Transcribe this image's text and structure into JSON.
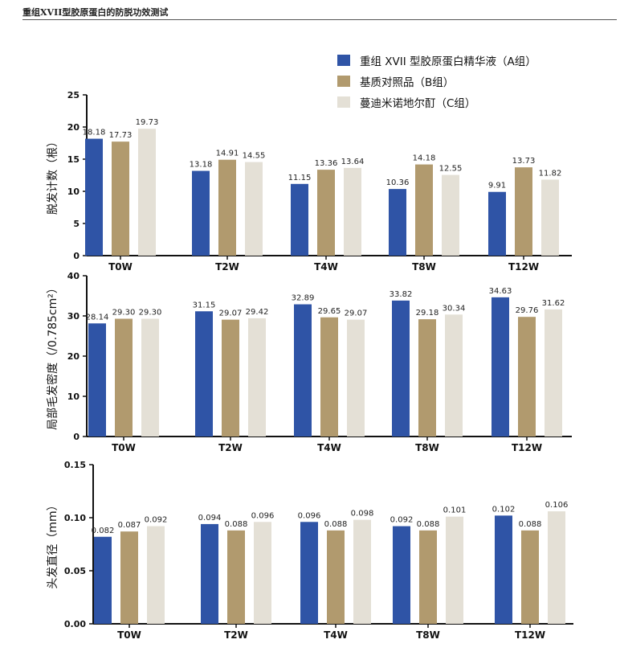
{
  "header": {
    "title": "重组XVII型胶原蛋白的防脱功效测试"
  },
  "colors": {
    "A": "#2f54a6",
    "B": "#b19a6e",
    "C": "#e4e0d6",
    "axis": "#111111"
  },
  "legend": [
    {
      "key": "A",
      "label": "重组 XVII 型胶原蛋白精华液（A组）"
    },
    {
      "key": "B",
      "label": "基质对照品（B组）"
    },
    {
      "key": "C",
      "label": "蔓迪米诺地尔酊（C组）"
    }
  ],
  "chart_data": [
    {
      "type": "bar",
      "categories": [
        "T0W",
        "T2W",
        "T4W",
        "T8W",
        "T12W"
      ],
      "ylabel": "脱发计数（根）",
      "ylim": [
        0,
        25
      ],
      "yticks": [
        0,
        5,
        10,
        15,
        20,
        25
      ],
      "tick_labels": [
        "0",
        "5",
        "10",
        "15",
        "20",
        "25"
      ],
      "series": [
        {
          "key": "A",
          "values": [
            18.18,
            13.18,
            11.15,
            10.36,
            9.91
          ],
          "labels": [
            "18.18",
            "13.18",
            "11.15",
            "10.36",
            "9.91"
          ]
        },
        {
          "key": "B",
          "values": [
            17.73,
            14.91,
            13.36,
            14.18,
            13.73
          ],
          "labels": [
            "17.73",
            "14.91",
            "13.36",
            "14.18",
            "13.73"
          ]
        },
        {
          "key": "C",
          "values": [
            19.73,
            14.55,
            13.64,
            12.55,
            11.82
          ],
          "labels": [
            "19.73",
            "14.55",
            "13.64",
            "12.55",
            "11.82"
          ]
        }
      ]
    },
    {
      "type": "bar",
      "categories": [
        "T0W",
        "T2W",
        "T4W",
        "T8W",
        "T12W"
      ],
      "ylabel": "局部毛发密度（/0.785cm²）",
      "ylim": [
        0,
        40
      ],
      "yticks": [
        0,
        10,
        20,
        30,
        40
      ],
      "tick_labels": [
        "0",
        "10",
        "20",
        "30",
        "40"
      ],
      "series": [
        {
          "key": "A",
          "values": [
            28.14,
            31.15,
            32.89,
            33.82,
            34.63
          ],
          "labels": [
            "28.14",
            "31.15",
            "32.89",
            "33.82",
            "34.63"
          ]
        },
        {
          "key": "B",
          "values": [
            29.3,
            29.07,
            29.65,
            29.18,
            29.76
          ],
          "labels": [
            "29.30",
            "29.07",
            "29.65",
            "29.18",
            "29.76"
          ]
        },
        {
          "key": "C",
          "values": [
            29.3,
            29.42,
            29.07,
            30.34,
            31.62
          ],
          "labels": [
            "29.30",
            "29.42",
            "29.07",
            "30.34",
            "31.62"
          ]
        }
      ]
    },
    {
      "type": "bar",
      "categories": [
        "T0W",
        "T2W",
        "T4W",
        "T8W",
        "T12W"
      ],
      "ylabel": "头发直径（mm）",
      "ylim": [
        0,
        0.15
      ],
      "yticks": [
        0,
        0.05,
        0.1,
        0.15
      ],
      "tick_labels": [
        "0.00",
        "0.05",
        "0.10",
        "0.15"
      ],
      "series": [
        {
          "key": "A",
          "values": [
            0.082,
            0.094,
            0.096,
            0.092,
            0.102
          ],
          "labels": [
            "0.082",
            "0.094",
            "0.096",
            "0.092",
            "0.102"
          ]
        },
        {
          "key": "B",
          "values": [
            0.087,
            0.088,
            0.088,
            0.088,
            0.088
          ],
          "labels": [
            "0.087",
            "0.088",
            "0.088",
            "0.088",
            "0.088"
          ]
        },
        {
          "key": "C",
          "values": [
            0.092,
            0.096,
            0.098,
            0.101,
            0.106
          ],
          "labels": [
            "0.092",
            "0.096",
            "0.098",
            "0.101",
            "0.106"
          ]
        }
      ]
    }
  ]
}
